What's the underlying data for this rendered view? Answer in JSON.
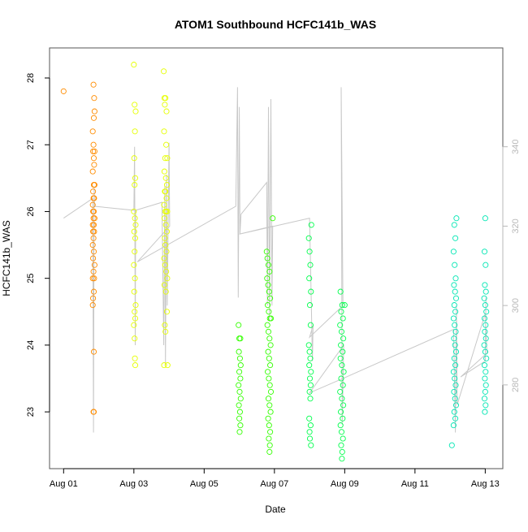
{
  "chart_data": {
    "type": "scatter",
    "title": "ATOM1 Southbound HCFC141b_WAS",
    "xlabel": "Date",
    "ylabel": "HCFC141b_WAS",
    "x_ticks": [
      "Aug 01",
      "Aug 03",
      "Aug 05",
      "Aug 07",
      "Aug 09",
      "Aug 11",
      "Aug 13"
    ],
    "x_tick_days": [
      1,
      3,
      5,
      7,
      9,
      11,
      13
    ],
    "xlim_days": [
      0.6,
      13.5
    ],
    "ylim": [
      22.15,
      28.45
    ],
    "y_ticks": [
      23,
      24,
      25,
      26,
      27,
      28
    ],
    "secondary_y": {
      "ticks": [
        280,
        300,
        320,
        340
      ],
      "ylim": [
        258.9,
        364.9
      ],
      "color": "#b8b8b8"
    },
    "grid": false,
    "legend": "none",
    "series": [
      {
        "color": "#FF8C00",
        "points": [
          [
            1.0,
            27.8
          ],
          [
            1.85,
            27.9
          ],
          [
            1.87,
            27.7
          ],
          [
            1.88,
            27.5
          ],
          [
            1.86,
            27.4
          ],
          [
            1.83,
            27.2
          ],
          [
            1.85,
            27.0
          ],
          [
            1.84,
            26.9
          ],
          [
            1.88,
            26.9
          ],
          [
            1.86,
            26.8
          ],
          [
            1.87,
            26.7
          ],
          [
            1.83,
            26.6
          ],
          [
            1.86,
            26.4
          ],
          [
            1.88,
            26.4
          ],
          [
            1.84,
            26.3
          ],
          [
            1.86,
            26.2
          ],
          [
            1.85,
            26.2
          ],
          [
            1.87,
            26.2
          ],
          [
            1.83,
            26.1
          ],
          [
            1.84,
            26.0
          ],
          [
            1.86,
            26.0
          ],
          [
            1.88,
            25.9
          ],
          [
            1.85,
            25.9
          ],
          [
            1.83,
            25.8
          ],
          [
            1.86,
            25.8
          ],
          [
            1.84,
            25.7
          ],
          [
            1.87,
            25.7
          ],
          [
            1.85,
            25.6
          ],
          [
            1.83,
            25.5
          ],
          [
            1.86,
            25.4
          ],
          [
            1.84,
            25.3
          ],
          [
            1.88,
            25.2
          ],
          [
            1.85,
            25.1
          ],
          [
            1.83,
            25.0
          ],
          [
            1.87,
            25.0
          ],
          [
            1.86,
            24.8
          ],
          [
            1.84,
            24.7
          ],
          [
            1.83,
            24.6
          ],
          [
            1.86,
            23.9
          ],
          [
            1.85,
            23.0
          ],
          [
            1.86,
            23.0
          ]
        ]
      },
      {
        "color": "#E6FF00",
        "points": [
          [
            3.0,
            28.2
          ],
          [
            3.02,
            27.6
          ],
          [
            3.05,
            27.5
          ],
          [
            3.03,
            27.2
          ],
          [
            3.01,
            26.8
          ],
          [
            3.04,
            26.5
          ],
          [
            3.02,
            26.4
          ],
          [
            3.0,
            26.0
          ],
          [
            3.03,
            25.9
          ],
          [
            3.05,
            25.8
          ],
          [
            3.01,
            25.7
          ],
          [
            3.04,
            25.6
          ],
          [
            3.02,
            25.4
          ],
          [
            3.0,
            25.2
          ],
          [
            3.03,
            25.0
          ],
          [
            3.01,
            24.8
          ],
          [
            3.05,
            24.6
          ],
          [
            3.02,
            24.5
          ],
          [
            3.04,
            24.4
          ],
          [
            3.0,
            24.3
          ],
          [
            3.02,
            24.1
          ],
          [
            3.03,
            23.8
          ],
          [
            3.04,
            23.7
          ],
          [
            3.85,
            28.1
          ],
          [
            3.87,
            27.7
          ],
          [
            3.9,
            27.7
          ],
          [
            3.88,
            27.6
          ],
          [
            3.93,
            27.5
          ],
          [
            3.86,
            27.2
          ],
          [
            3.92,
            27.0
          ],
          [
            3.89,
            26.8
          ],
          [
            3.95,
            26.8
          ],
          [
            3.87,
            26.6
          ],
          [
            3.91,
            26.5
          ],
          [
            3.94,
            26.4
          ],
          [
            3.88,
            26.3
          ],
          [
            3.9,
            26.3
          ],
          [
            3.93,
            26.2
          ],
          [
            3.86,
            26.1
          ],
          [
            3.89,
            26.0
          ],
          [
            3.92,
            26.0
          ],
          [
            3.95,
            26.0
          ],
          [
            3.87,
            25.9
          ],
          [
            3.91,
            25.8
          ],
          [
            3.94,
            25.7
          ],
          [
            3.88,
            25.6
          ],
          [
            3.9,
            25.5
          ],
          [
            3.93,
            25.4
          ],
          [
            3.86,
            25.3
          ],
          [
            3.89,
            25.2
          ],
          [
            3.92,
            25.1
          ],
          [
            3.95,
            25.0
          ],
          [
            3.87,
            24.9
          ],
          [
            3.91,
            24.8
          ],
          [
            3.94,
            24.5
          ],
          [
            3.88,
            24.3
          ],
          [
            3.9,
            24.2
          ],
          [
            3.86,
            23.7
          ],
          [
            3.96,
            23.7
          ]
        ]
      },
      {
        "color": "#33FF00",
        "points": [
          [
            5.98,
            24.3
          ],
          [
            6.0,
            24.1
          ],
          [
            6.03,
            24.1
          ],
          [
            5.99,
            23.9
          ],
          [
            6.02,
            23.8
          ],
          [
            6.04,
            23.7
          ],
          [
            6.0,
            23.6
          ],
          [
            6.03,
            23.5
          ],
          [
            5.98,
            23.4
          ],
          [
            6.01,
            23.3
          ],
          [
            6.04,
            23.2
          ],
          [
            5.99,
            23.1
          ],
          [
            6.02,
            23.0
          ],
          [
            6.0,
            22.9
          ],
          [
            6.03,
            22.8
          ],
          [
            6.01,
            22.7
          ],
          [
            6.78,
            25.4
          ],
          [
            6.8,
            25.3
          ],
          [
            6.83,
            25.2
          ],
          [
            6.86,
            25.1
          ],
          [
            6.79,
            25.0
          ],
          [
            6.82,
            24.9
          ],
          [
            6.85,
            24.8
          ],
          [
            6.88,
            24.7
          ],
          [
            6.81,
            24.6
          ],
          [
            6.84,
            24.5
          ],
          [
            6.87,
            24.4
          ],
          [
            6.9,
            24.4
          ],
          [
            6.8,
            24.3
          ],
          [
            6.83,
            24.2
          ],
          [
            6.86,
            24.1
          ],
          [
            6.89,
            24.0
          ],
          [
            6.82,
            23.9
          ],
          [
            6.85,
            23.8
          ],
          [
            6.88,
            23.7
          ],
          [
            6.81,
            23.6
          ],
          [
            6.84,
            23.5
          ],
          [
            6.87,
            23.4
          ],
          [
            6.9,
            23.3
          ],
          [
            6.83,
            23.2
          ],
          [
            6.86,
            23.1
          ],
          [
            6.89,
            23.0
          ],
          [
            6.82,
            22.9
          ],
          [
            6.85,
            22.8
          ],
          [
            6.88,
            22.7
          ],
          [
            6.84,
            22.6
          ],
          [
            6.87,
            22.5
          ],
          [
            6.86,
            22.4
          ],
          [
            6.95,
            25.9
          ]
        ]
      },
      {
        "color": "#00FF4D",
        "points": [
          [
            8.05,
            25.8
          ],
          [
            7.98,
            25.6
          ],
          [
            8.0,
            25.4
          ],
          [
            8.02,
            25.2
          ],
          [
            7.99,
            25.0
          ],
          [
            8.04,
            24.8
          ],
          [
            8.01,
            24.6
          ],
          [
            8.03,
            24.3
          ],
          [
            7.98,
            24.0
          ],
          [
            8.0,
            23.9
          ],
          [
            8.02,
            23.8
          ],
          [
            7.99,
            23.7
          ],
          [
            8.04,
            23.6
          ],
          [
            8.01,
            23.5
          ],
          [
            8.03,
            23.4
          ],
          [
            8.0,
            23.3
          ],
          [
            8.02,
            23.2
          ],
          [
            7.99,
            22.9
          ],
          [
            8.03,
            22.8
          ],
          [
            8.0,
            22.7
          ],
          [
            8.01,
            22.6
          ],
          [
            8.04,
            22.5
          ],
          [
            8.88,
            24.8
          ],
          [
            8.93,
            24.6
          ],
          [
            9.0,
            24.6
          ],
          [
            8.9,
            24.5
          ],
          [
            8.95,
            24.4
          ],
          [
            8.87,
            24.3
          ],
          [
            8.91,
            24.2
          ],
          [
            8.96,
            24.1
          ],
          [
            8.89,
            24.0
          ],
          [
            8.94,
            23.9
          ],
          [
            8.88,
            23.8
          ],
          [
            8.92,
            23.7
          ],
          [
            8.97,
            23.6
          ],
          [
            8.9,
            23.5
          ],
          [
            8.95,
            23.4
          ],
          [
            8.87,
            23.3
          ],
          [
            8.92,
            23.2
          ],
          [
            8.96,
            23.1
          ],
          [
            8.89,
            23.0
          ],
          [
            8.94,
            22.9
          ],
          [
            8.88,
            22.8
          ],
          [
            8.91,
            22.7
          ],
          [
            8.95,
            22.6
          ],
          [
            8.9,
            22.5
          ],
          [
            8.93,
            22.4
          ],
          [
            8.92,
            22.3
          ]
        ]
      },
      {
        "color": "#00E6B3",
        "points": [
          [
            12.18,
            25.9
          ],
          [
            12.12,
            25.8
          ],
          [
            12.15,
            25.6
          ],
          [
            12.1,
            25.4
          ],
          [
            12.13,
            25.2
          ],
          [
            12.16,
            25.0
          ],
          [
            12.11,
            24.9
          ],
          [
            12.14,
            24.8
          ],
          [
            12.17,
            24.7
          ],
          [
            12.12,
            24.6
          ],
          [
            12.15,
            24.5
          ],
          [
            12.1,
            24.4
          ],
          [
            12.13,
            24.3
          ],
          [
            12.16,
            24.2
          ],
          [
            12.11,
            24.1
          ],
          [
            12.14,
            24.0
          ],
          [
            12.17,
            23.9
          ],
          [
            12.12,
            23.8
          ],
          [
            12.15,
            23.7
          ],
          [
            12.1,
            23.6
          ],
          [
            12.13,
            23.5
          ],
          [
            12.16,
            23.4
          ],
          [
            12.11,
            23.3
          ],
          [
            12.14,
            23.2
          ],
          [
            12.17,
            23.1
          ],
          [
            12.12,
            23.0
          ],
          [
            12.15,
            22.9
          ],
          [
            12.1,
            22.8
          ],
          [
            12.05,
            22.5
          ],
          [
            13.0,
            25.9
          ],
          [
            12.98,
            25.4
          ],
          [
            13.01,
            25.2
          ],
          [
            12.99,
            24.9
          ],
          [
            13.02,
            24.8
          ],
          [
            12.97,
            24.7
          ],
          [
            13.0,
            24.6
          ],
          [
            13.03,
            24.5
          ],
          [
            12.98,
            24.4
          ],
          [
            13.01,
            24.3
          ],
          [
            12.99,
            24.2
          ],
          [
            13.02,
            24.1
          ],
          [
            12.97,
            24.0
          ],
          [
            13.0,
            23.9
          ],
          [
            13.03,
            23.8
          ],
          [
            12.98,
            23.7
          ],
          [
            13.01,
            23.6
          ],
          [
            12.99,
            23.5
          ],
          [
            13.02,
            23.4
          ],
          [
            13.0,
            23.3
          ],
          [
            12.98,
            23.2
          ],
          [
            13.01,
            23.1
          ],
          [
            12.99,
            23.0
          ]
        ]
      }
    ],
    "trace_series": {
      "axis": "secondary",
      "color": "#c8c8c8",
      "points": [
        [
          1.0,
          322
        ],
        [
          1.83,
          327
        ],
        [
          1.85,
          268
        ],
        [
          1.86,
          300
        ],
        [
          1.87,
          330
        ],
        [
          1.88,
          325
        ],
        [
          3.0,
          324
        ],
        [
          3.02,
          340
        ],
        [
          3.04,
          290
        ],
        [
          3.05,
          324
        ],
        [
          3.8,
          326
        ],
        [
          3.85,
          290
        ],
        [
          3.88,
          330
        ],
        [
          3.9,
          285
        ],
        [
          3.93,
          333
        ],
        [
          3.95,
          300
        ],
        [
          4.0,
          341
        ],
        [
          4.02,
          320
        ],
        [
          3.1,
          311
        ],
        [
          5.9,
          325
        ],
        [
          5.95,
          355
        ],
        [
          5.97,
          302
        ],
        [
          6.0,
          350
        ],
        [
          6.02,
          318
        ],
        [
          6.05,
          323
        ],
        [
          6.78,
          331
        ],
        [
          6.8,
          300
        ],
        [
          6.83,
          350
        ],
        [
          6.86,
          296
        ],
        [
          6.9,
          352
        ],
        [
          6.93,
          300
        ],
        [
          6.95,
          320
        ],
        [
          6.0,
          318
        ],
        [
          8.0,
          322
        ],
        [
          8.05,
          300
        ],
        [
          8.08,
          286
        ],
        [
          8.1,
          295
        ],
        [
          8.0,
          292
        ],
        [
          8.95,
          300
        ],
        [
          8.9,
          355
        ],
        [
          8.93,
          270
        ],
        [
          8.97,
          290
        ],
        [
          8.0,
          278
        ],
        [
          9.05,
          282
        ],
        [
          12.1,
          294
        ],
        [
          12.15,
          268
        ],
        [
          12.18,
          300
        ],
        [
          12.2,
          275
        ],
        [
          13.0,
          298
        ],
        [
          13.05,
          288
        ],
        [
          12.3,
          282
        ],
        [
          13.0,
          286
        ],
        [
          13.02,
          302
        ]
      ]
    }
  }
}
